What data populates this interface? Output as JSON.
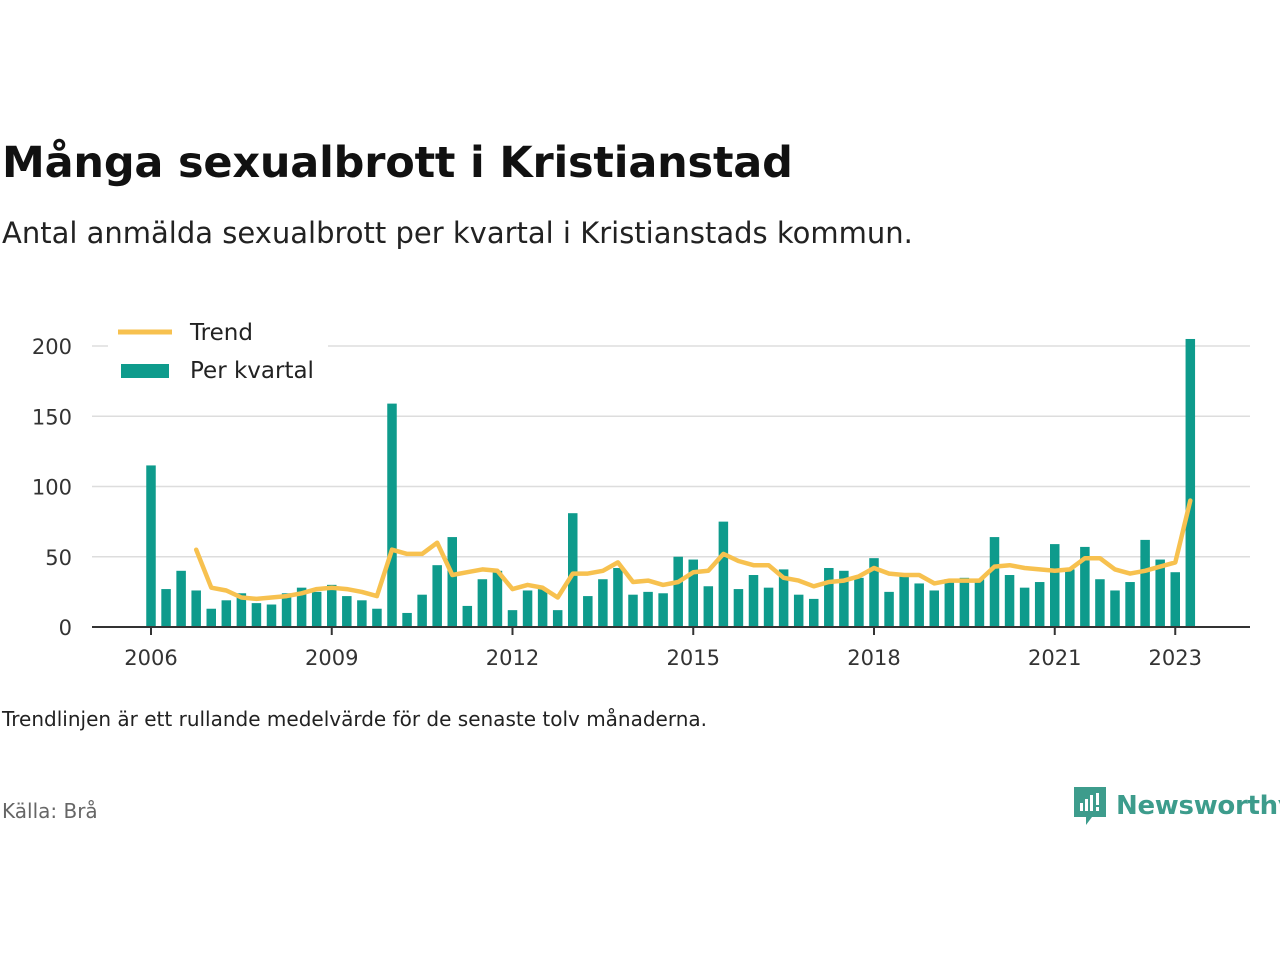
{
  "header": {
    "title": "Många sexualbrott i Kristianstad",
    "subtitle": "Antal anmälda sexualbrott per kvartal i Kristianstads kommun."
  },
  "footer": {
    "note": "Trendlinjen är ett rullande medelvärde för de senaste tolv månaderna.",
    "source": "Källa: Brå",
    "brand": "Newsworthy"
  },
  "colors": {
    "bars": "#0e9b8c",
    "trend": "#f7c14f",
    "grid": "#dddddd",
    "axis": "#333333"
  },
  "chart_data": {
    "type": "bar",
    "title": "",
    "xlabel": "",
    "ylabel": "",
    "ylim": [
      0,
      205
    ],
    "yticks": [
      0,
      50,
      100,
      150,
      200
    ],
    "xticks": [
      "2006",
      "2009",
      "2012",
      "2015",
      "2018",
      "2021",
      "2023"
    ],
    "grid": true,
    "legend_position": "top-left",
    "categories": [
      "2006 Q1",
      "2006 Q2",
      "2006 Q3",
      "2006 Q4",
      "2007 Q1",
      "2007 Q2",
      "2007 Q3",
      "2007 Q4",
      "2008 Q1",
      "2008 Q2",
      "2008 Q3",
      "2008 Q4",
      "2009 Q1",
      "2009 Q2",
      "2009 Q3",
      "2009 Q4",
      "2010 Q1",
      "2010 Q2",
      "2010 Q3",
      "2010 Q4",
      "2011 Q1",
      "2011 Q2",
      "2011 Q3",
      "2011 Q4",
      "2012 Q1",
      "2012 Q2",
      "2012 Q3",
      "2012 Q4",
      "2013 Q1",
      "2013 Q2",
      "2013 Q3",
      "2013 Q4",
      "2014 Q1",
      "2014 Q2",
      "2014 Q3",
      "2014 Q4",
      "2015 Q1",
      "2015 Q2",
      "2015 Q3",
      "2015 Q4",
      "2016 Q1",
      "2016 Q2",
      "2016 Q3",
      "2016 Q4",
      "2017 Q1",
      "2017 Q2",
      "2017 Q3",
      "2017 Q4",
      "2018 Q1",
      "2018 Q2",
      "2018 Q3",
      "2018 Q4",
      "2019 Q1",
      "2019 Q2",
      "2019 Q3",
      "2019 Q4",
      "2020 Q1",
      "2020 Q2",
      "2020 Q3",
      "2020 Q4",
      "2021 Q1",
      "2021 Q2",
      "2021 Q3",
      "2021 Q4",
      "2022 Q1",
      "2022 Q2",
      "2022 Q3",
      "2022 Q4",
      "2023 Q1",
      "2023 Q2"
    ],
    "series": [
      {
        "name": "Per kvartal",
        "kind": "bar",
        "values": [
          115,
          27,
          40,
          26,
          13,
          19,
          24,
          17,
          16,
          24,
          28,
          25,
          30,
          22,
          19,
          13,
          159,
          10,
          23,
          44,
          64,
          15,
          34,
          40,
          12,
          26,
          27,
          12,
          81,
          22,
          34,
          42,
          23,
          25,
          24,
          50,
          48,
          29,
          75,
          27,
          37,
          28,
          41,
          23,
          20,
          42,
          40,
          35,
          49,
          25,
          38,
          31,
          26,
          34,
          35,
          34,
          64,
          37,
          28,
          32,
          59,
          41,
          57,
          34,
          26,
          32,
          62,
          48,
          39,
          205
        ]
      },
      {
        "name": "Trend",
        "kind": "line",
        "values": [
          null,
          null,
          null,
          55,
          28,
          26,
          21,
          20,
          21,
          22,
          24,
          27,
          28,
          27,
          25,
          22,
          55,
          52,
          52,
          60,
          37,
          39,
          41,
          40,
          27,
          30,
          28,
          21,
          38,
          38,
          40,
          46,
          32,
          33,
          30,
          32,
          39,
          40,
          52,
          47,
          44,
          44,
          35,
          33,
          29,
          32,
          33,
          36,
          42,
          38,
          37,
          37,
          31,
          33,
          33,
          33,
          43,
          44,
          42,
          41,
          40,
          41,
          49,
          49,
          41,
          38,
          40,
          43,
          46,
          90
        ]
      }
    ]
  }
}
